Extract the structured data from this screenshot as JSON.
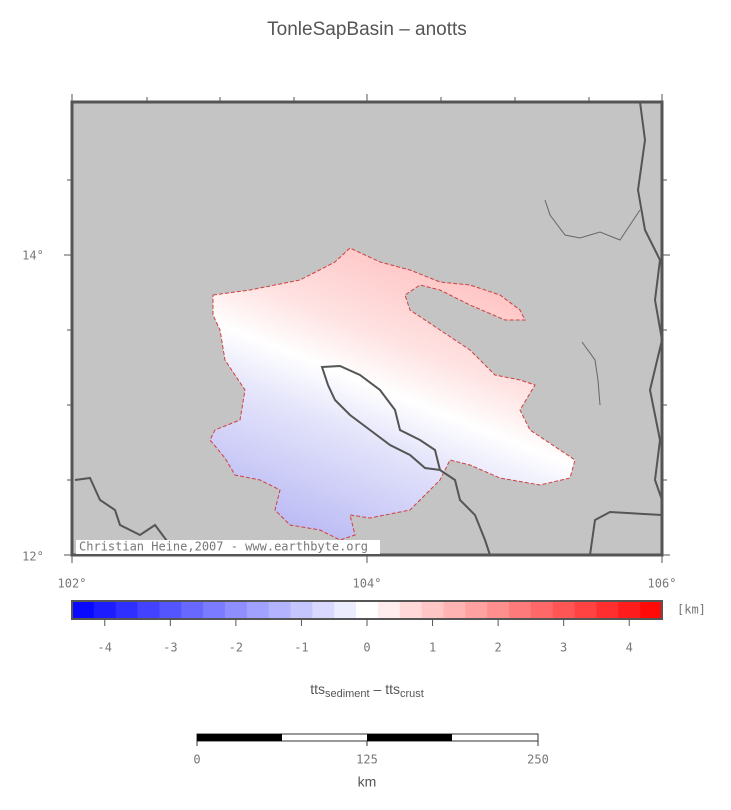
{
  "header": {
    "title": "TonleSapBasin – anotts"
  },
  "map": {
    "lat_labels": [
      "14°",
      "12°"
    ],
    "lon_labels": [
      "102°",
      "104°",
      "106°"
    ],
    "credit": "Christian Heine,2007 - www.earthbyte.org"
  },
  "colorbar": {
    "unit": "[km]",
    "tick_labels": [
      "-4",
      "-3",
      "-2",
      "-1",
      "0",
      "1",
      "2",
      "3",
      "4"
    ],
    "caption": {
      "term1": "tts",
      "term1_sub": "sediment",
      "operator": " – ",
      "term2": "tts",
      "term2_sub": "crust"
    }
  },
  "scalebar": {
    "tick_labels": [
      "0",
      "125",
      "250"
    ],
    "unit": "km"
  }
}
